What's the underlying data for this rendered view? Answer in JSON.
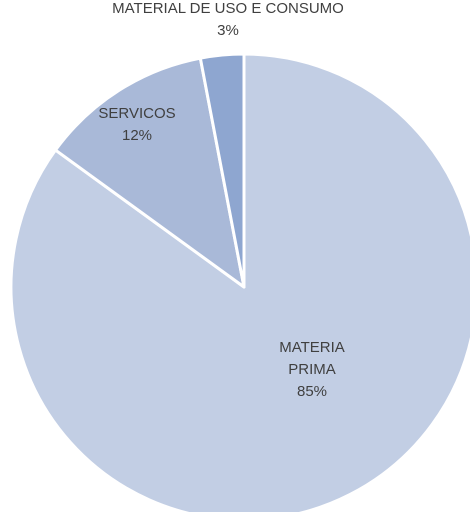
{
  "chart_data": {
    "type": "pie",
    "slices": [
      {
        "name_lines": [
          "MATERIA",
          "PRIMA"
        ],
        "value": 85,
        "value_label": "85%",
        "color": "#c2cee4"
      },
      {
        "name_lines": [
          "SERVICOS"
        ],
        "value": 12,
        "value_label": "12%",
        "color": "#a9b9d8"
      },
      {
        "name_lines": [
          "MATERIAL DE USO E CONSUMO"
        ],
        "value": 3,
        "value_label": "3%",
        "color": "#8ea6d0"
      }
    ],
    "legend": "none",
    "start_angle_deg": 0,
    "direction": "clockwise"
  }
}
